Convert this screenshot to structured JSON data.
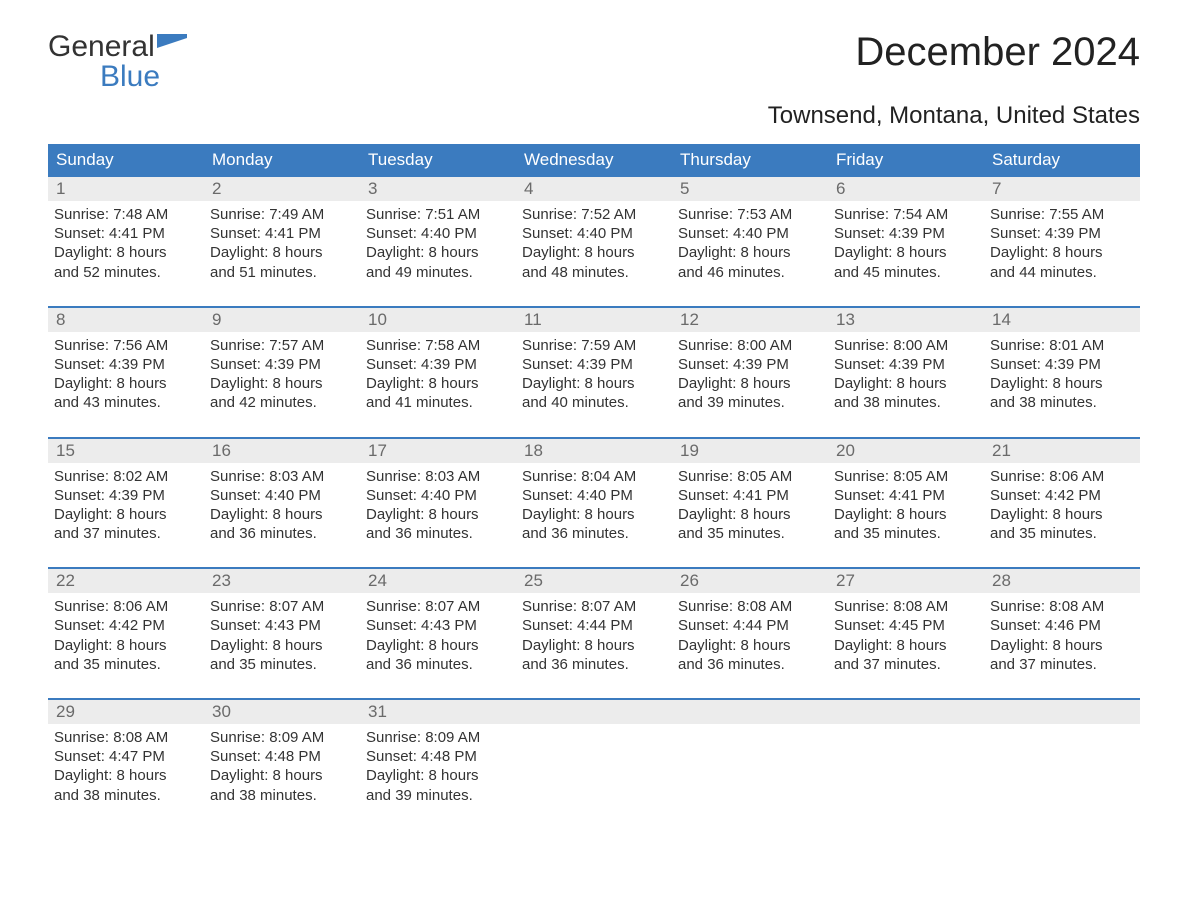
{
  "brand": {
    "part1": "General",
    "part2": "Blue",
    "color_accent": "#3b7bbf",
    "color_text": "#333333"
  },
  "title": "December 2024",
  "location": "Townsend, Montana, United States",
  "colors": {
    "header_bg": "#3b7bbf",
    "header_text": "#ffffff",
    "daynum_bg": "#ececec",
    "daynum_text": "#6a6a6a",
    "body_text": "#333333",
    "week_divider": "#3b7bbf",
    "background": "#ffffff"
  },
  "typography": {
    "title_fontsize": 40,
    "location_fontsize": 24,
    "dayheader_fontsize": 17,
    "daynum_fontsize": 17,
    "body_fontsize": 15
  },
  "day_headers": [
    "Sunday",
    "Monday",
    "Tuesday",
    "Wednesday",
    "Thursday",
    "Friday",
    "Saturday"
  ],
  "labels": {
    "sunrise": "Sunrise: ",
    "sunset": "Sunset: ",
    "daylight_prefix": "Daylight: ",
    "daylight_join": " and ",
    "daylight_suffix": "."
  },
  "weeks": [
    [
      {
        "n": "1",
        "sunrise": "7:48 AM",
        "sunset": "4:41 PM",
        "dl_h": "8 hours",
        "dl_m": "52 minutes"
      },
      {
        "n": "2",
        "sunrise": "7:49 AM",
        "sunset": "4:41 PM",
        "dl_h": "8 hours",
        "dl_m": "51 minutes"
      },
      {
        "n": "3",
        "sunrise": "7:51 AM",
        "sunset": "4:40 PM",
        "dl_h": "8 hours",
        "dl_m": "49 minutes"
      },
      {
        "n": "4",
        "sunrise": "7:52 AM",
        "sunset": "4:40 PM",
        "dl_h": "8 hours",
        "dl_m": "48 minutes"
      },
      {
        "n": "5",
        "sunrise": "7:53 AM",
        "sunset": "4:40 PM",
        "dl_h": "8 hours",
        "dl_m": "46 minutes"
      },
      {
        "n": "6",
        "sunrise": "7:54 AM",
        "sunset": "4:39 PM",
        "dl_h": "8 hours",
        "dl_m": "45 minutes"
      },
      {
        "n": "7",
        "sunrise": "7:55 AM",
        "sunset": "4:39 PM",
        "dl_h": "8 hours",
        "dl_m": "44 minutes"
      }
    ],
    [
      {
        "n": "8",
        "sunrise": "7:56 AM",
        "sunset": "4:39 PM",
        "dl_h": "8 hours",
        "dl_m": "43 minutes"
      },
      {
        "n": "9",
        "sunrise": "7:57 AM",
        "sunset": "4:39 PM",
        "dl_h": "8 hours",
        "dl_m": "42 minutes"
      },
      {
        "n": "10",
        "sunrise": "7:58 AM",
        "sunset": "4:39 PM",
        "dl_h": "8 hours",
        "dl_m": "41 minutes"
      },
      {
        "n": "11",
        "sunrise": "7:59 AM",
        "sunset": "4:39 PM",
        "dl_h": "8 hours",
        "dl_m": "40 minutes"
      },
      {
        "n": "12",
        "sunrise": "8:00 AM",
        "sunset": "4:39 PM",
        "dl_h": "8 hours",
        "dl_m": "39 minutes"
      },
      {
        "n": "13",
        "sunrise": "8:00 AM",
        "sunset": "4:39 PM",
        "dl_h": "8 hours",
        "dl_m": "38 minutes"
      },
      {
        "n": "14",
        "sunrise": "8:01 AM",
        "sunset": "4:39 PM",
        "dl_h": "8 hours",
        "dl_m": "38 minutes"
      }
    ],
    [
      {
        "n": "15",
        "sunrise": "8:02 AM",
        "sunset": "4:39 PM",
        "dl_h": "8 hours",
        "dl_m": "37 minutes"
      },
      {
        "n": "16",
        "sunrise": "8:03 AM",
        "sunset": "4:40 PM",
        "dl_h": "8 hours",
        "dl_m": "36 minutes"
      },
      {
        "n": "17",
        "sunrise": "8:03 AM",
        "sunset": "4:40 PM",
        "dl_h": "8 hours",
        "dl_m": "36 minutes"
      },
      {
        "n": "18",
        "sunrise": "8:04 AM",
        "sunset": "4:40 PM",
        "dl_h": "8 hours",
        "dl_m": "36 minutes"
      },
      {
        "n": "19",
        "sunrise": "8:05 AM",
        "sunset": "4:41 PM",
        "dl_h": "8 hours",
        "dl_m": "35 minutes"
      },
      {
        "n": "20",
        "sunrise": "8:05 AM",
        "sunset": "4:41 PM",
        "dl_h": "8 hours",
        "dl_m": "35 minutes"
      },
      {
        "n": "21",
        "sunrise": "8:06 AM",
        "sunset": "4:42 PM",
        "dl_h": "8 hours",
        "dl_m": "35 minutes"
      }
    ],
    [
      {
        "n": "22",
        "sunrise": "8:06 AM",
        "sunset": "4:42 PM",
        "dl_h": "8 hours",
        "dl_m": "35 minutes"
      },
      {
        "n": "23",
        "sunrise": "8:07 AM",
        "sunset": "4:43 PM",
        "dl_h": "8 hours",
        "dl_m": "35 minutes"
      },
      {
        "n": "24",
        "sunrise": "8:07 AM",
        "sunset": "4:43 PM",
        "dl_h": "8 hours",
        "dl_m": "36 minutes"
      },
      {
        "n": "25",
        "sunrise": "8:07 AM",
        "sunset": "4:44 PM",
        "dl_h": "8 hours",
        "dl_m": "36 minutes"
      },
      {
        "n": "26",
        "sunrise": "8:08 AM",
        "sunset": "4:44 PM",
        "dl_h": "8 hours",
        "dl_m": "36 minutes"
      },
      {
        "n": "27",
        "sunrise": "8:08 AM",
        "sunset": "4:45 PM",
        "dl_h": "8 hours",
        "dl_m": "37 minutes"
      },
      {
        "n": "28",
        "sunrise": "8:08 AM",
        "sunset": "4:46 PM",
        "dl_h": "8 hours",
        "dl_m": "37 minutes"
      }
    ],
    [
      {
        "n": "29",
        "sunrise": "8:08 AM",
        "sunset": "4:47 PM",
        "dl_h": "8 hours",
        "dl_m": "38 minutes"
      },
      {
        "n": "30",
        "sunrise": "8:09 AM",
        "sunset": "4:48 PM",
        "dl_h": "8 hours",
        "dl_m": "38 minutes"
      },
      {
        "n": "31",
        "sunrise": "8:09 AM",
        "sunset": "4:48 PM",
        "dl_h": "8 hours",
        "dl_m": "39 minutes"
      },
      null,
      null,
      null,
      null
    ]
  ]
}
